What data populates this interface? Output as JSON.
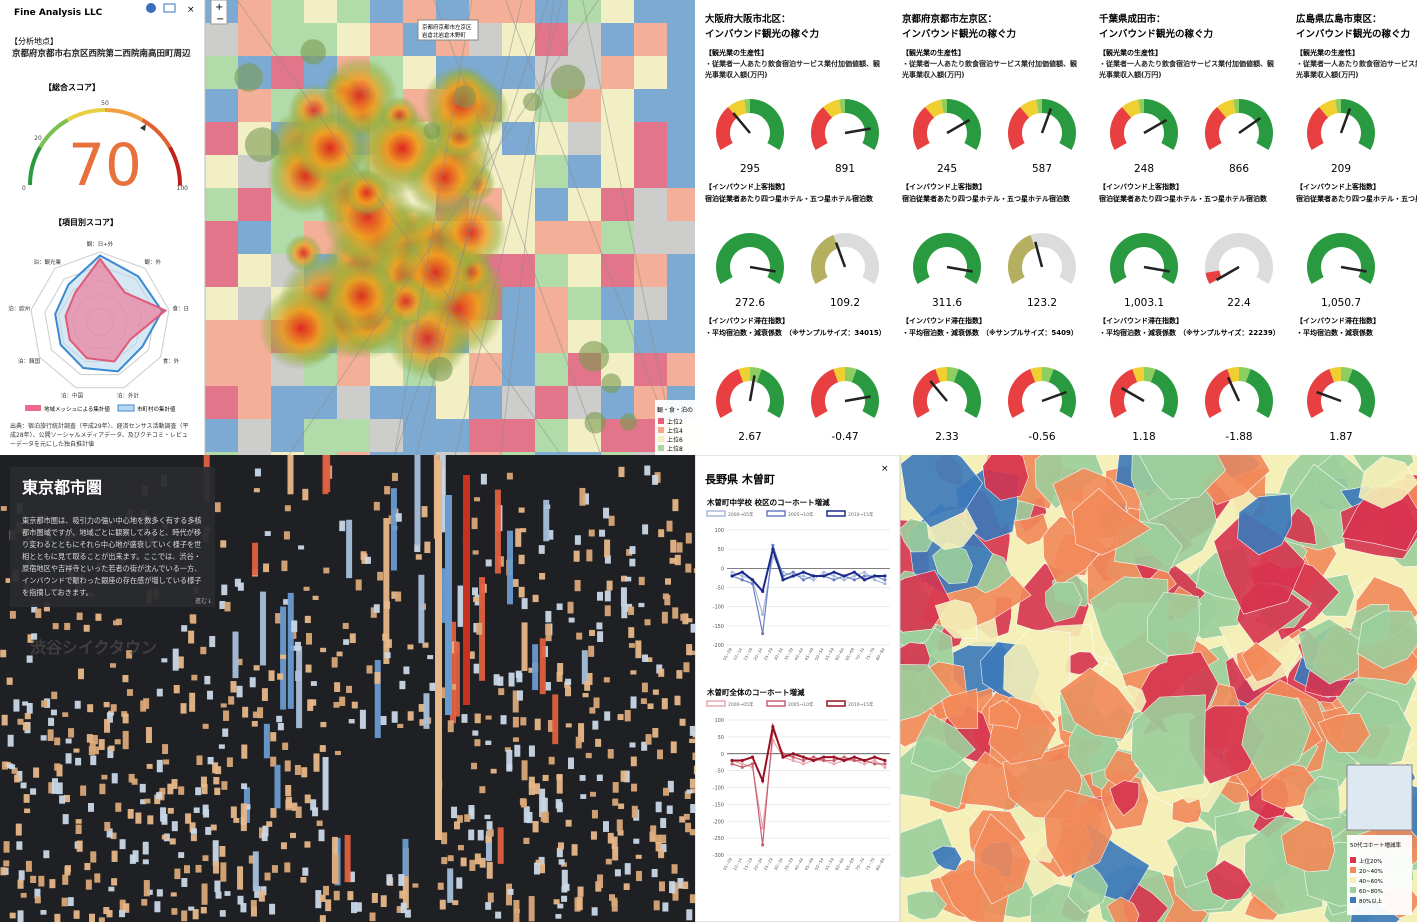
{
  "kyoto_panel": {
    "brand": "Fine Analysis LLC",
    "section": "【分析地点】",
    "location": "京都府京都市右京区西院第二西院南高田町周辺",
    "total_label": "【総合スコア】",
    "score": "70",
    "gauge_ticks": [
      "0",
      "20",
      "50",
      "100"
    ],
    "items_label": "【項目別スコア】",
    "radar_axes": [
      "観：日+外",
      "観：外",
      "食：日",
      "食：外",
      "泊：外計",
      "泊：中国",
      "泊：韓国",
      "泊：欧州",
      "泊：観光業"
    ],
    "legend": [
      "地域メッシュによる集計値",
      "市町村の集計値"
    ],
    "source": "出典：宿泊旅行統計調査（平成29年）、経済センサス活動調査（平成28年）、公開ソーシャルメディアデータ、及びクチコミ・レビューデータを元にした独自推計値"
  },
  "kyoto_map": {
    "popup": [
      "京都府京都市左京区",
      "岩倉北岩倉木野町"
    ],
    "legend_title": "観・食・泊の",
    "legend": [
      "上位2",
      "上位4",
      "上位6",
      "上位8"
    ]
  },
  "gauge_panel": {
    "subtitle": "インバウンド観光の稼ぐ力",
    "sections": [
      {
        "heading": "【観光業の生産性】",
        "text": "・従業者一人あたり飲食宿泊サービス業付加価値額、観光事業収入額(万円)"
      },
      {
        "heading": "【インバウンド上客指数】",
        "text": "宿泊従業者あたり四つ星ホテル・五つ星ホテル宿泊数"
      },
      {
        "heading": "【インバウンド滞在指数】",
        "text": "・平均宿泊数・減衰係数"
      }
    ],
    "columns": [
      {
        "title": "大阪府大阪市北区：",
        "sample": "（※サンプルサイズ：34015）",
        "values": [
          "295",
          "891",
          "272.6",
          "109.2",
          "2.67",
          "-0.47"
        ]
      },
      {
        "title": "京都府京都市左京区：",
        "sample": "（※サンプルサイズ：5409）",
        "values": [
          "245",
          "587",
          "311.6",
          "123.2",
          "2.33",
          "-0.56"
        ]
      },
      {
        "title": "千葉県成田市：",
        "sample": "（※サンプルサイズ：22239）",
        "values": [
          "248",
          "866",
          "1,003.1",
          "22.4",
          "1.18",
          "-1.88"
        ]
      },
      {
        "title": "広島県広島市東区：",
        "values": [
          "209",
          null,
          "1,050.7",
          null,
          "1.87",
          null
        ]
      }
    ]
  },
  "tokyo_panel": {
    "title": "東京都市圏",
    "text": "東京都市圏は、吸引力の強い中心地を数多く有する多核都市圏域ですが、地域ごとに観察してみると、時代が移り変わるとともにそれら中心地が盛衰していく様子を世相とともに見て取ることが出来ます。ここでは、渋谷・原宿地区や吉祥寺といった若者の街が沈んでいる一方、インバウンドで賑わった銀座の存在感が増している様子を指摘しておきます。",
    "next": "進む↓",
    "next_title": "渋谷シイクタウン"
  },
  "kiso_panel": {
    "title": "長野県 木曽町",
    "charts": [
      {
        "title": "木曽町中学校 校区のコーホート増減",
        "categories": [
          "05~09",
          "10~14",
          "15~19",
          "20~24",
          "25~29",
          "30~34",
          "35~39",
          "40~44",
          "45~49",
          "50~54",
          "55~59",
          "60~64",
          "65~69",
          "70~74",
          "75~79",
          "80~84"
        ],
        "ylim": [
          -200,
          100
        ],
        "yticks": [
          100,
          50,
          0,
          -50,
          -100,
          -150,
          -200
        ],
        "series": [
          {
            "name": "2000→05年",
            "color": "#aab8dc",
            "values": [
              -10,
              -20,
              -30,
              -120,
              30,
              -10,
              -20,
              -20,
              -30,
              -10,
              -20,
              -30,
              -20,
              -10,
              -30,
              -40
            ]
          },
          {
            "name": "2005→10年",
            "color": "#6a7fc4",
            "values": [
              -20,
              -30,
              -40,
              -170,
              60,
              -20,
              -10,
              -30,
              -20,
              -20,
              -30,
              -20,
              -30,
              -20,
              -20,
              -30
            ]
          },
          {
            "name": "2010→15年",
            "color": "#1a2a8a",
            "values": [
              -20,
              -10,
              -30,
              -60,
              50,
              -30,
              -20,
              -10,
              -20,
              -20,
              -10,
              -20,
              -10,
              -30,
              -20,
              -20
            ]
          }
        ]
      },
      {
        "title": "木曽町全体のコーホート増減",
        "categories": [
          "05~09",
          "10~14",
          "15~19",
          "20~24",
          "25~29",
          "30~34",
          "35~39",
          "40~44",
          "45~49",
          "50~54",
          "55~59",
          "60~64",
          "65~69",
          "70~74",
          "75~79",
          "80~84"
        ],
        "ylim": [
          -300,
          100
        ],
        "yticks": [
          100,
          50,
          0,
          -50,
          -100,
          -150,
          -200,
          -250,
          -300
        ],
        "series": [
          {
            "name": "2000→05年",
            "color": "#e8a8b0",
            "values": [
              -20,
              -30,
              -40,
              -220,
              40,
              -10,
              -20,
              -30,
              -20,
              -20,
              -30,
              -20,
              -20,
              -30,
              -20,
              -40
            ]
          },
          {
            "name": "2005→10年",
            "color": "#c86070",
            "values": [
              -30,
              -40,
              -30,
              -270,
              70,
              0,
              -10,
              -20,
              -10,
              -20,
              -20,
              -10,
              -20,
              -20,
              -30,
              -30
            ]
          },
          {
            "name": "2010→15年",
            "color": "#9a1020",
            "values": [
              -20,
              -20,
              -10,
              -80,
              80,
              -10,
              0,
              -10,
              -20,
              -10,
              -10,
              -20,
              -10,
              -20,
              -10,
              -20
            ]
          }
        ]
      }
    ]
  },
  "kiso_map": {
    "legend_title": "50代コホート増減率",
    "legend": [
      "上位20%",
      "20~40%",
      "40~60%",
      "60~80%",
      "80%以上"
    ]
  }
}
